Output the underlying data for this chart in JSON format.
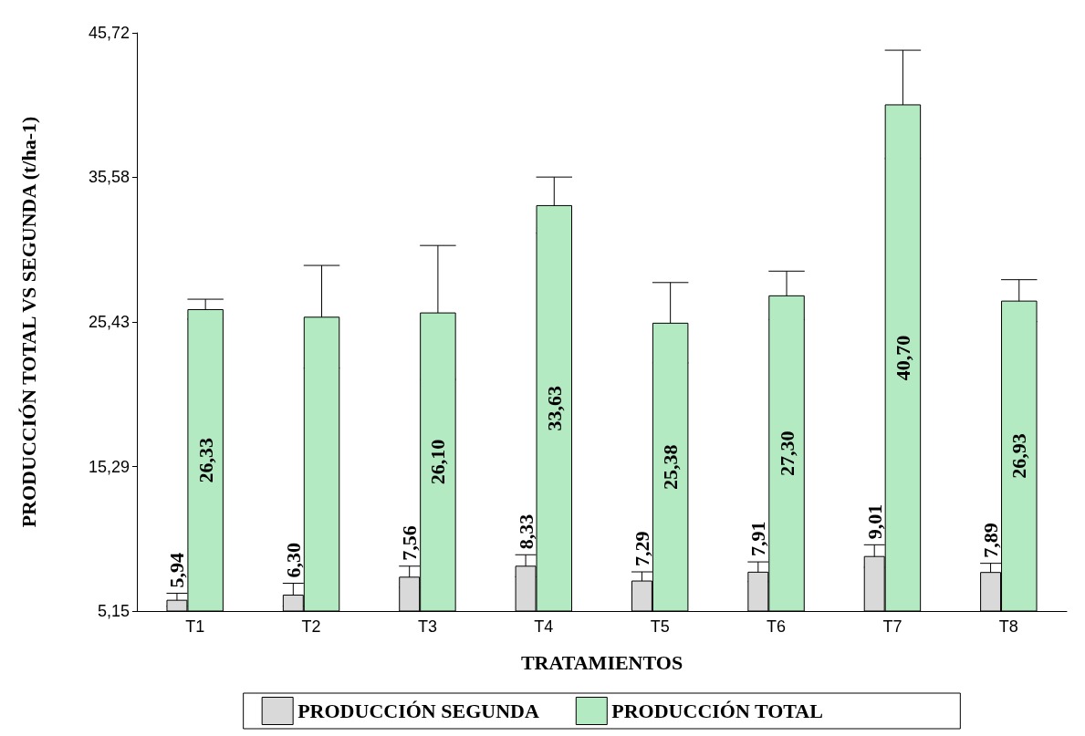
{
  "chart_data": {
    "type": "bar",
    "xlabel": "TRATAMIENTOS",
    "ylabel": "PRODUCCIÓN TOTAL VS SEGUNDA (t/ha-1)",
    "categories": [
      "T1",
      "T2",
      "T3",
      "T4",
      "T5",
      "T6",
      "T7",
      "T8"
    ],
    "series": [
      {
        "name": "PRODUCCIÓN SEGUNDA",
        "color": "#d9d9d9",
        "values": [
          5.94,
          6.3,
          7.56,
          8.33,
          7.29,
          7.91,
          9.01,
          7.89
        ],
        "value_labels": [
          "5,94",
          "6,30",
          "7,56",
          "8,33",
          "7,29",
          "7,91",
          "9,01",
          "7,89"
        ],
        "errors": [
          0.46,
          0.8,
          0.74,
          0.77,
          0.61,
          0.69,
          0.79,
          0.61
        ]
      },
      {
        "name": "PRODUCCIÓN TOTAL",
        "color": "#b3eac1",
        "values": [
          26.33,
          25.8,
          26.1,
          33.63,
          25.38,
          27.3,
          40.7,
          26.93
        ],
        "value_labels": [
          "26,33",
          null,
          "26,10",
          "33,63",
          "25,38",
          "27,30",
          "40,70",
          "26,93"
        ],
        "errors": [
          0.7,
          3.6,
          4.7,
          1.97,
          2.82,
          1.7,
          3.8,
          1.47
        ]
      }
    ],
    "ylim": [
      5.15,
      45.72
    ],
    "yticks": [
      {
        "value": 5.15,
        "label": "5,15"
      },
      {
        "value": 15.29,
        "label": "15,29"
      },
      {
        "value": 25.43,
        "label": "25,43"
      },
      {
        "value": 35.58,
        "label": "35,58"
      },
      {
        "value": 45.72,
        "label": "45,72"
      }
    ],
    "grid": false,
    "legend": "bottom"
  }
}
